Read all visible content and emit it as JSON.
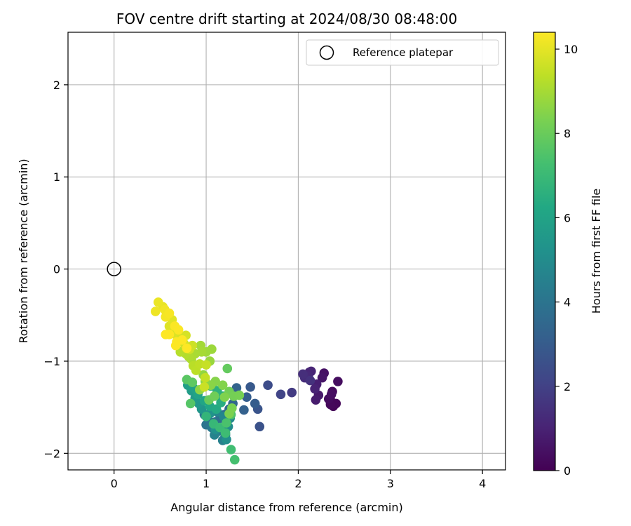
{
  "chart_data": {
    "type": "scatter",
    "title": "FOV centre drift starting at 2024/08/30 08:48:00",
    "xlabel": "Angular distance from reference (arcmin)",
    "ylabel": "Rotation from reference (arcmin)",
    "xlim": [
      -0.5,
      4.25
    ],
    "ylim": [
      -2.18,
      2.57
    ],
    "xticks": [
      0,
      1,
      2,
      3,
      4
    ],
    "xtick_labels": [
      "0",
      "1",
      "2",
      "3",
      "4"
    ],
    "yticks": [
      -2,
      -1,
      0,
      1,
      2
    ],
    "ytick_labels": [
      "−2",
      "−1",
      "0",
      "1",
      "2"
    ],
    "grid": true,
    "legend": {
      "placement": "top-right",
      "entries": [
        "Reference platepar"
      ]
    },
    "colorbar": {
      "label": "Hours from first FF file",
      "range": [
        0,
        10.4
      ],
      "ticks": [
        0,
        2,
        4,
        6,
        8,
        10
      ],
      "tick_labels": [
        "0",
        "2",
        "4",
        "6",
        "8",
        "10"
      ],
      "colormap": "viridis"
    },
    "reference_point": {
      "name": "Reference platepar",
      "x": 0,
      "y": 0
    },
    "colors": {
      "viridis": [
        "#440154",
        "#482475",
        "#414487",
        "#355f8d",
        "#2a788e",
        "#21918c",
        "#22a884",
        "#44bf70",
        "#7ad151",
        "#bddf26",
        "#fde725"
      ],
      "grid": "#b0b0b0",
      "axis": "#000000"
    },
    "points": [
      [
        2.36,
        -1.44,
        0.05
      ],
      [
        2.38,
        -1.49,
        0.1
      ],
      [
        2.41,
        -1.46,
        0.15
      ],
      [
        2.35,
        -1.47,
        0.2
      ],
      [
        2.37,
        -1.33,
        0.25
      ],
      [
        2.33,
        -1.41,
        0.3
      ],
      [
        2.43,
        -1.22,
        0.35
      ],
      [
        2.36,
        -1.36,
        0.4
      ],
      [
        2.28,
        -1.13,
        0.5
      ],
      [
        2.26,
        -1.18,
        0.6
      ],
      [
        2.22,
        -1.37,
        0.7
      ],
      [
        2.19,
        -1.42,
        0.8
      ],
      [
        2.2,
        -1.25,
        0.9
      ],
      [
        2.18,
        -1.3,
        1.0
      ],
      [
        2.14,
        -1.11,
        1.05
      ],
      [
        2.12,
        -1.12,
        1.1
      ],
      [
        2.11,
        -1.16,
        1.2
      ],
      [
        2.07,
        -1.18,
        1.3
      ],
      [
        2.05,
        -1.14,
        1.4
      ],
      [
        2.13,
        -1.21,
        1.5
      ],
      [
        1.93,
        -1.34,
        1.8
      ],
      [
        1.81,
        -1.36,
        2.1
      ],
      [
        1.67,
        -1.26,
        2.4
      ],
      [
        1.58,
        -1.71,
        2.6
      ],
      [
        1.56,
        -1.52,
        2.7
      ],
      [
        1.48,
        -1.28,
        2.9
      ],
      [
        1.53,
        -1.46,
        3.0
      ],
      [
        1.44,
        -1.39,
        3.1
      ],
      [
        1.41,
        -1.53,
        3.2
      ],
      [
        1.33,
        -1.29,
        3.3
      ],
      [
        1.29,
        -1.46,
        3.4
      ],
      [
        1.25,
        -1.52,
        3.5
      ],
      [
        1.2,
        -1.58,
        3.6
      ],
      [
        1.15,
        -1.62,
        3.7
      ],
      [
        1.1,
        -1.66,
        3.8
      ],
      [
        1.03,
        -1.65,
        3.9
      ],
      [
        1.0,
        -1.69,
        4.0
      ],
      [
        0.98,
        -1.58,
        4.1
      ],
      [
        1.06,
        -1.72,
        4.2
      ],
      [
        1.14,
        -1.76,
        4.3
      ],
      [
        1.21,
        -1.8,
        4.4
      ],
      [
        1.18,
        -1.86,
        4.5
      ],
      [
        1.09,
        -1.8,
        4.6
      ],
      [
        1.12,
        -1.55,
        4.7
      ],
      [
        1.19,
        -1.6,
        4.8
      ],
      [
        1.26,
        -1.62,
        4.9
      ],
      [
        1.24,
        -1.71,
        5.0
      ],
      [
        1.22,
        -1.85,
        5.1
      ],
      [
        1.1,
        -1.74,
        5.2
      ],
      [
        1.04,
        -1.57,
        5.3
      ],
      [
        0.95,
        -1.52,
        5.4
      ],
      [
        0.92,
        -1.46,
        5.5
      ],
      [
        0.88,
        -1.4,
        5.6
      ],
      [
        0.84,
        -1.32,
        5.7
      ],
      [
        0.8,
        -1.26,
        5.8
      ],
      [
        0.86,
        -1.29,
        5.9
      ],
      [
        0.91,
        -1.36,
        6.0
      ],
      [
        0.98,
        -1.43,
        6.1
      ],
      [
        1.04,
        -1.49,
        6.2
      ],
      [
        1.11,
        -1.52,
        6.3
      ],
      [
        1.16,
        -1.45,
        6.4
      ],
      [
        1.18,
        -1.38,
        6.5
      ],
      [
        1.12,
        -1.32,
        6.6
      ],
      [
        1.05,
        -1.27,
        6.7
      ],
      [
        1.0,
        -1.6,
        6.8
      ],
      [
        1.08,
        -1.68,
        6.9
      ],
      [
        1.15,
        -1.72,
        7.0
      ],
      [
        1.21,
        -1.78,
        7.1
      ],
      [
        1.27,
        -1.96,
        7.2
      ],
      [
        1.31,
        -2.07,
        7.3
      ],
      [
        1.22,
        -1.67,
        7.4
      ],
      [
        1.27,
        -1.58,
        7.5
      ],
      [
        0.83,
        -1.46,
        7.6
      ],
      [
        0.79,
        -1.2,
        7.7
      ],
      [
        0.85,
        -1.23,
        7.8
      ],
      [
        1.23,
        -1.08,
        7.9
      ],
      [
        1.03,
        -1.42,
        8.0
      ],
      [
        1.09,
        -1.38,
        8.1
      ],
      [
        1.25,
        -1.33,
        8.15
      ],
      [
        1.3,
        -1.38,
        8.2
      ],
      [
        1.36,
        -1.37,
        8.25
      ],
      [
        1.28,
        -1.51,
        8.3
      ],
      [
        1.25,
        -1.57,
        8.35
      ],
      [
        1.2,
        -1.39,
        8.4
      ],
      [
        1.18,
        -1.26,
        8.45
      ],
      [
        1.1,
        -1.22,
        8.5
      ],
      [
        1.05,
        -1.26,
        8.55
      ],
      [
        0.99,
        -1.22,
        8.6
      ],
      [
        0.93,
        -1.31,
        8.65
      ],
      [
        0.97,
        -1.15,
        8.7
      ],
      [
        1.04,
        -1.0,
        8.8
      ],
      [
        1.06,
        -0.87,
        8.85
      ],
      [
        1.0,
        -0.9,
        8.9
      ],
      [
        0.94,
        -0.83,
        8.95
      ],
      [
        0.95,
        -0.9,
        9.0
      ],
      [
        0.88,
        -0.92,
        9.05
      ],
      [
        0.84,
        -0.98,
        9.1
      ],
      [
        0.81,
        -0.95,
        9.15
      ],
      [
        0.78,
        -0.92,
        9.2
      ],
      [
        0.72,
        -0.9,
        9.25
      ],
      [
        0.86,
        -1.05,
        9.3
      ],
      [
        0.89,
        -1.1,
        9.35
      ],
      [
        0.93,
        -1.03,
        9.4
      ],
      [
        0.99,
        -1.18,
        9.45
      ],
      [
        1.0,
        -1.04,
        9.5
      ],
      [
        0.98,
        -1.28,
        9.55
      ],
      [
        0.85,
        -0.83,
        9.6
      ],
      [
        0.82,
        -0.87,
        9.65
      ],
      [
        0.76,
        -0.81,
        9.7
      ],
      [
        0.78,
        -0.72,
        9.75
      ],
      [
        0.69,
        -0.73,
        9.8
      ],
      [
        0.64,
        -0.7,
        9.85
      ],
      [
        0.6,
        -0.62,
        9.9
      ],
      [
        0.63,
        -0.55,
        9.95
      ],
      [
        0.57,
        -0.49,
        10.0
      ],
      [
        0.53,
        -0.41,
        10.05
      ],
      [
        0.48,
        -0.36,
        10.1
      ],
      [
        0.45,
        -0.46,
        10.15
      ],
      [
        0.55,
        -0.44,
        10.2
      ],
      [
        0.56,
        -0.52,
        10.25
      ],
      [
        0.6,
        -0.48,
        10.3
      ],
      [
        0.66,
        -0.62,
        10.35
      ],
      [
        0.7,
        -0.66,
        10.37
      ],
      [
        0.68,
        -0.79,
        10.38
      ],
      [
        0.67,
        -0.83,
        10.39
      ],
      [
        0.74,
        -0.77,
        10.4
      ],
      [
        0.79,
        -0.86,
        10.4
      ],
      [
        0.6,
        -0.71,
        10.4
      ],
      [
        0.56,
        -0.71,
        10.4
      ]
    ]
  }
}
